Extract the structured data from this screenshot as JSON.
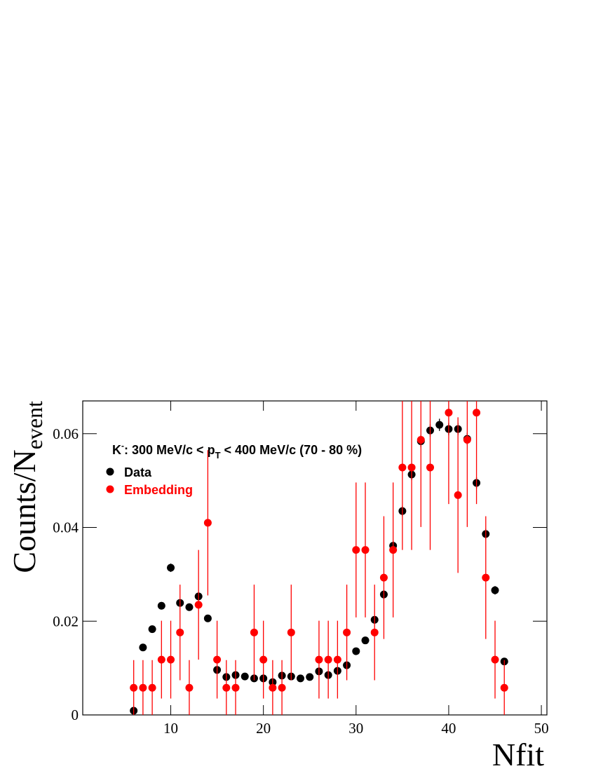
{
  "chart_data": {
    "type": "scatter",
    "x_label": "Nfit",
    "y_label": [
      "Counts/N",
      "event"
    ],
    "annotation": [
      "K",
      "-",
      ": 300 MeV/c < p",
      "T",
      " < 400 MeV/c (70 - 80 %)"
    ],
    "xlim": [
      0.5,
      50.6
    ],
    "ylim": [
      0,
      0.067
    ],
    "xticks": [
      10,
      20,
      30,
      40,
      50
    ],
    "yticks": [
      0,
      0.02,
      0.04,
      0.06
    ],
    "series": [
      {
        "name": "Data",
        "color": "#000000",
        "x": [
          6,
          7,
          8,
          9,
          10,
          11,
          12,
          13,
          14,
          15,
          16,
          17,
          18,
          19,
          20,
          21,
          22,
          23,
          24,
          25,
          26,
          27,
          28,
          29,
          30,
          31,
          32,
          33,
          34,
          35,
          36,
          37,
          38,
          39,
          40,
          41,
          42,
          43,
          44,
          45,
          46
        ],
        "values": [
          0.0009,
          0.0144,
          0.0183,
          0.0233,
          0.0314,
          0.0239,
          0.023,
          0.0253,
          0.0206,
          0.0096,
          0.0081,
          0.0085,
          0.0082,
          0.0078,
          0.0078,
          0.007,
          0.0084,
          0.0082,
          0.0078,
          0.0081,
          0.0093,
          0.0085,
          0.0094,
          0.0106,
          0.0136,
          0.0159,
          0.0203,
          0.0257,
          0.0361,
          0.0435,
          0.0513,
          0.0584,
          0.0607,
          0.0619,
          0.061,
          0.061,
          0.0589,
          0.0495,
          0.0386,
          0.0266,
          0.0114
        ],
        "errors": [
          0.0003,
          0.0006,
          0.0007,
          0.0008,
          0.0009,
          0.0008,
          0.0008,
          0.0008,
          0.0007,
          0.0005,
          0.0005,
          0.0005,
          0.0005,
          0.0005,
          0.0005,
          0.0005,
          0.0005,
          0.0005,
          0.0005,
          0.0005,
          0.0005,
          0.0005,
          0.0005,
          0.0006,
          0.0006,
          0.0007,
          0.0008,
          0.0009,
          0.001,
          0.0011,
          0.0012,
          0.0013,
          0.0013,
          0.0013,
          0.0013,
          0.0013,
          0.0013,
          0.0012,
          0.0011,
          0.0009,
          0.0006
        ]
      },
      {
        "name": "Embedding",
        "color": "#ff0000",
        "x": [
          6,
          7,
          8,
          9,
          10,
          11,
          12,
          13,
          14,
          15,
          16,
          17,
          19,
          20,
          21,
          22,
          23,
          26,
          27,
          28,
          29,
          30,
          31,
          32,
          33,
          34,
          35,
          36,
          37,
          38,
          40,
          41,
          42,
          43,
          44,
          45,
          46
        ],
        "values": [
          0.0058,
          0.0058,
          0.0058,
          0.0118,
          0.0118,
          0.0176,
          0.0058,
          0.0235,
          0.041,
          0.0118,
          0.0058,
          0.0058,
          0.0176,
          0.0118,
          0.0058,
          0.0058,
          0.0176,
          0.0118,
          0.0118,
          0.0118,
          0.0176,
          0.0352,
          0.0352,
          0.0176,
          0.0293,
          0.0352,
          0.0528,
          0.0528,
          0.0587,
          0.0528,
          0.0645,
          0.0469,
          0.0587,
          0.0645,
          0.0293,
          0.0118,
          0.0058
        ],
        "errors": [
          0.0059,
          0.0059,
          0.0059,
          0.0083,
          0.0083,
          0.0102,
          0.0059,
          0.0117,
          0.0155,
          0.0083,
          0.0059,
          0.0059,
          0.0102,
          0.0083,
          0.0059,
          0.0059,
          0.0102,
          0.0083,
          0.0083,
          0.0083,
          0.0102,
          0.0144,
          0.0144,
          0.0102,
          0.0131,
          0.0144,
          0.0176,
          0.0176,
          0.0186,
          0.0176,
          0.0195,
          0.0166,
          0.0186,
          0.0195,
          0.0131,
          0.0083,
          0.0059
        ]
      }
    ]
  }
}
